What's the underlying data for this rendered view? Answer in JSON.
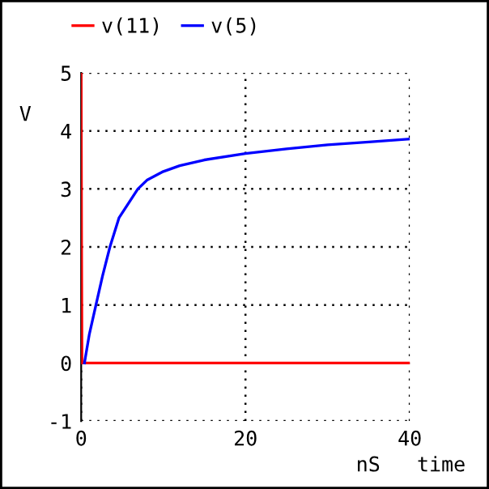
{
  "chart_data": {
    "type": "line",
    "xlabel": "nS   time",
    "ylabel": "V",
    "xlim": [
      0,
      40
    ],
    "xticks": [
      0,
      20,
      40
    ],
    "ylim": [
      -1,
      5
    ],
    "yticks": [
      -1,
      0,
      1,
      2,
      3,
      4,
      5
    ],
    "grid": true,
    "legend": "top left",
    "line_style": "solid",
    "marker": "none",
    "series": [
      {
        "name": "v(11)",
        "color": "#ff0000",
        "x": [
          0,
          0,
          0.05,
          0.1,
          40
        ],
        "values": [
          0,
          5,
          2.05,
          0,
          0
        ]
      },
      {
        "name": "v(5)",
        "color": "#0000ff",
        "x": [
          0.4,
          1,
          1.8,
          2.6,
          3.5,
          4.6,
          6.9,
          8,
          10,
          12,
          15,
          20,
          25,
          30,
          35,
          40
        ],
        "values": [
          0,
          0.5,
          1,
          1.5,
          2,
          2.5,
          3,
          3.15,
          3.3,
          3.4,
          3.5,
          3.61,
          3.69,
          3.76,
          3.81,
          3.86
        ]
      }
    ]
  }
}
